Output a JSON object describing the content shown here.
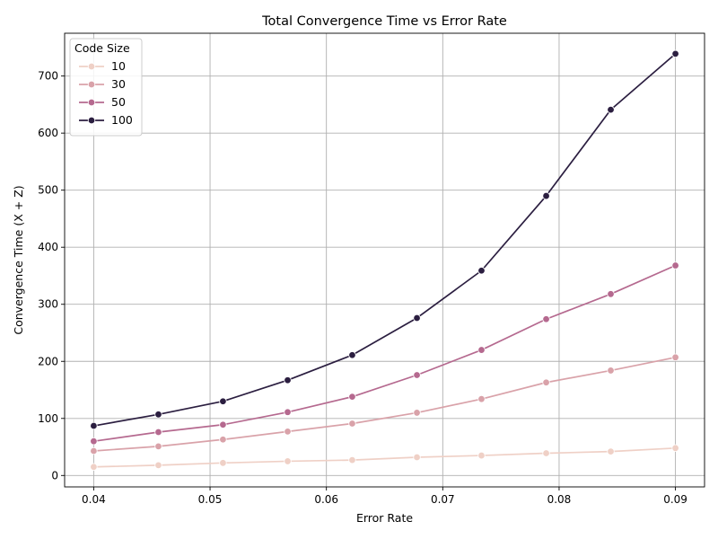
{
  "chart_data": {
    "type": "line",
    "title": "Total Convergence Time vs Error Rate",
    "xlabel": "Error Rate",
    "ylabel": "Convergence Time (X + Z)",
    "xlim": [
      0.0375,
      0.0925
    ],
    "ylim": [
      -20,
      775
    ],
    "xticks": [
      "0.04",
      "0.05",
      "0.06",
      "0.07",
      "0.08",
      "0.09"
    ],
    "yticks": [
      "0",
      "100",
      "200",
      "300",
      "400",
      "500",
      "600",
      "700"
    ],
    "grid": true,
    "legend": {
      "title": "Code Size",
      "placement": "top-left"
    },
    "x": [
      0.04,
      0.04556,
      0.05111,
      0.05667,
      0.06222,
      0.06778,
      0.07333,
      0.07889,
      0.08444,
      0.09
    ],
    "series": [
      {
        "name": "10",
        "color": "#efd0c6",
        "values": [
          15,
          18,
          22,
          25,
          27,
          32,
          35,
          39,
          42,
          48
        ]
      },
      {
        "name": "30",
        "color": "#d9a2a9",
        "values": [
          43,
          51,
          63,
          77,
          91,
          110,
          134,
          163,
          184,
          207
        ]
      },
      {
        "name": "50",
        "color": "#b5698f",
        "values": [
          60,
          76,
          89,
          111,
          138,
          176,
          220,
          274,
          318,
          368
        ]
      },
      {
        "name": "100",
        "color": "#2b1e40",
        "values": [
          87,
          107,
          130,
          167,
          211,
          276,
          359,
          490,
          641,
          739
        ]
      }
    ]
  }
}
